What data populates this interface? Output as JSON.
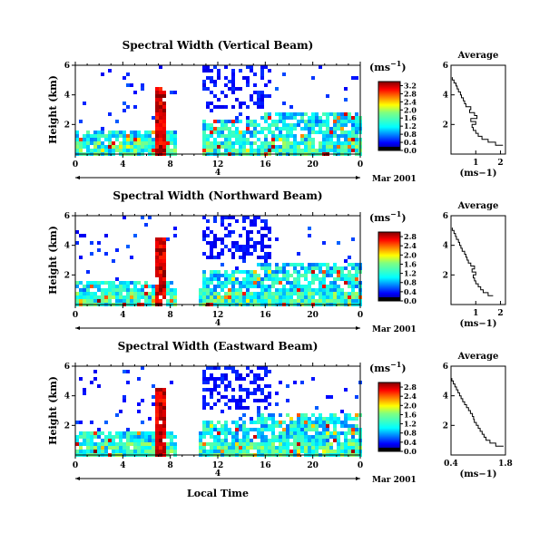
{
  "figure": {
    "xlabel": "Local Time",
    "date_label": "Mar 2001",
    "day_marker": "4",
    "unit_label": "(ms",
    "unit_exp": "−1",
    "unit_close": ")",
    "avg_title": "Average"
  },
  "chart_data": [
    {
      "type": "heatmap",
      "title": "Spectral Width (Vertical Beam)",
      "ylabel": "Height (km)",
      "xlim": [
        0,
        24
      ],
      "ylim": [
        0,
        6
      ],
      "x_ticks": [
        "0",
        "4",
        "8",
        "12",
        "16",
        "20",
        "0"
      ],
      "y_ticks": [
        "2",
        "4",
        "6"
      ],
      "colorbar_ticks": [
        "0.0",
        "0.4",
        "0.8",
        "1.2",
        "1.6",
        "2.0",
        "2.4",
        "2.8",
        "3.2"
      ],
      "colorbar_range": [
        0,
        3.4
      ],
      "data_gap_hours": [
        8.3,
        10.5
      ],
      "average_profile": {
        "title": "Average",
        "xlabel": "(ms−1)",
        "x_ticks": [
          "1",
          "2"
        ],
        "xlim": [
          0,
          2.2
        ],
        "y_ticks": [
          "2",
          "4",
          "6"
        ],
        "ylim": [
          0,
          6
        ],
        "height_km": [
          0.6,
          0.8,
          1.0,
          1.2,
          1.4,
          1.6,
          1.8,
          2.0,
          2.2,
          2.4,
          2.6,
          2.8,
          3.0,
          3.2,
          3.4,
          3.6,
          3.8,
          4.0,
          4.2,
          4.4,
          4.6,
          4.8,
          5.0,
          5.2
        ],
        "width_ms": [
          2.1,
          1.8,
          1.5,
          1.25,
          1.1,
          1.0,
          0.9,
          0.85,
          1.0,
          0.8,
          1.05,
          0.95,
          0.75,
          0.8,
          0.6,
          0.55,
          0.5,
          0.42,
          0.38,
          0.3,
          0.25,
          0.2,
          0.12,
          0.05
        ]
      }
    },
    {
      "type": "heatmap",
      "title": "Spectral Width (Northward Beam)",
      "ylabel": "Height (km)",
      "xlim": [
        0,
        24
      ],
      "ylim": [
        0,
        6
      ],
      "x_ticks": [
        "0",
        "4",
        "8",
        "12",
        "16",
        "20",
        "0"
      ],
      "y_ticks": [
        "2",
        "4",
        "6"
      ],
      "colorbar_ticks": [
        "0.0",
        "0.4",
        "0.8",
        "1.2",
        "1.6",
        "2.0",
        "2.4",
        "2.8"
      ],
      "colorbar_range": [
        0,
        3.0
      ],
      "data_gap_hours": [
        8.3,
        10.3
      ],
      "average_profile": {
        "title": "Average",
        "xlabel": "(ms−1)",
        "x_ticks": [
          "1",
          "2"
        ],
        "xlim": [
          0,
          2.2
        ],
        "y_ticks": [
          "2",
          "4",
          "6"
        ],
        "ylim": [
          0,
          6
        ],
        "height_km": [
          0.6,
          0.8,
          1.0,
          1.2,
          1.4,
          1.6,
          1.8,
          2.0,
          2.2,
          2.4,
          2.6,
          2.8,
          3.0,
          3.2,
          3.4,
          3.6,
          3.8,
          4.0,
          4.2,
          4.4,
          4.6,
          4.8,
          5.0,
          5.2
        ],
        "width_ms": [
          1.7,
          1.5,
          1.3,
          1.2,
          1.1,
          1.0,
          0.95,
          0.9,
          1.0,
          0.85,
          0.95,
          0.8,
          0.7,
          0.65,
          0.6,
          0.55,
          0.45,
          0.4,
          0.35,
          0.3,
          0.22,
          0.18,
          0.12,
          0.05
        ]
      }
    },
    {
      "type": "heatmap",
      "title": "Spectral Width (Eastward Beam)",
      "ylabel": "Height (km)",
      "xlim": [
        0,
        24
      ],
      "ylim": [
        0,
        6
      ],
      "x_ticks": [
        "0",
        "4",
        "8",
        "12",
        "16",
        "20",
        "0"
      ],
      "y_ticks": [
        "2",
        "4",
        "6"
      ],
      "colorbar_ticks": [
        "0.0",
        "0.4",
        "0.8",
        "1.2",
        "1.6",
        "2.0",
        "2.4",
        "2.8"
      ],
      "colorbar_range": [
        0,
        3.0
      ],
      "data_gap_hours": [
        8.3,
        10.3
      ],
      "average_profile": {
        "title": "Average",
        "xlabel": "(ms−1)",
        "x_ticks": [
          "0.4",
          "1.8"
        ],
        "xlim": [
          0.4,
          1.8
        ],
        "y_ticks": [
          "2",
          "4",
          "6"
        ],
        "ylim": [
          0,
          6
        ],
        "height_km": [
          0.6,
          0.8,
          1.0,
          1.2,
          1.4,
          1.6,
          1.8,
          2.0,
          2.2,
          2.4,
          2.6,
          2.8,
          3.0,
          3.2,
          3.4,
          3.6,
          3.8,
          4.0,
          4.2,
          4.4,
          4.6,
          4.8,
          5.0,
          5.2
        ],
        "width_ms": [
          1.75,
          1.55,
          1.4,
          1.3,
          1.25,
          1.2,
          1.15,
          1.1,
          1.05,
          1.0,
          0.98,
          0.95,
          0.9,
          0.85,
          0.8,
          0.75,
          0.7,
          0.66,
          0.62,
          0.58,
          0.54,
          0.5,
          0.46,
          0.42
        ]
      }
    }
  ]
}
